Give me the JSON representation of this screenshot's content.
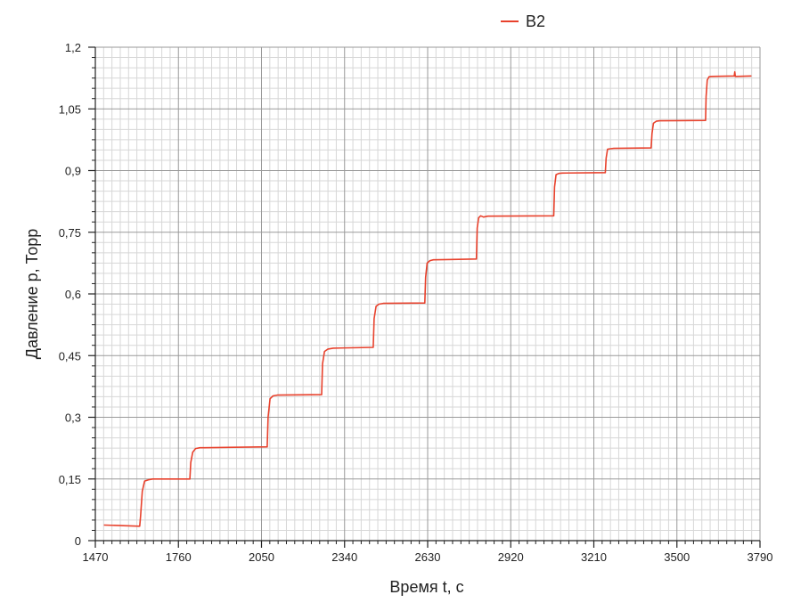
{
  "chart_data": {
    "type": "line",
    "title": "",
    "xlabel": "Время t, c",
    "ylabel": "Давление p, Торр",
    "xlim": [
      1470,
      3790
    ],
    "ylim": [
      0,
      1.2
    ],
    "x_ticks": [
      1470,
      1760,
      2050,
      2340,
      2630,
      2920,
      3210,
      3500,
      3790
    ],
    "y_ticks": [
      0,
      0.15,
      0.3,
      0.45,
      0.6,
      0.75,
      0.9,
      1.05,
      1.2
    ],
    "x_tick_labels": [
      "1470",
      "1760",
      "2050",
      "2340",
      "2630",
      "2920",
      "3210",
      "3500",
      "3790"
    ],
    "y_tick_labels": [
      "0",
      "0,15",
      "0,3",
      "0,45",
      "0,6",
      "0,75",
      "0,9",
      "1,05",
      "1,2"
    ],
    "grid": true,
    "legend_position": "top-center",
    "series": [
      {
        "name": "B2",
        "color": "#e8412c",
        "x": [
          1500,
          1625,
          1628,
          1634,
          1642,
          1655,
          1670,
          1800,
          1803,
          1810,
          1820,
          1835,
          1850,
          2070,
          2073,
          2080,
          2090,
          2105,
          2260,
          2263,
          2270,
          2282,
          2300,
          2440,
          2443,
          2450,
          2460,
          2475,
          2620,
          2623,
          2628,
          2638,
          2650,
          2800,
          2803,
          2808,
          2815,
          2825,
          2840,
          3070,
          3073,
          3078,
          3088,
          3100,
          3250,
          3253,
          3258,
          3268,
          3280,
          3410,
          3413,
          3418,
          3428,
          3440,
          3600,
          3602,
          3606,
          3612,
          3620,
          3700,
          3702,
          3704,
          3760
        ],
        "y": [
          0.038,
          0.035,
          0.06,
          0.12,
          0.145,
          0.148,
          0.15,
          0.15,
          0.19,
          0.215,
          0.224,
          0.226,
          0.226,
          0.228,
          0.3,
          0.345,
          0.352,
          0.354,
          0.355,
          0.43,
          0.46,
          0.466,
          0.468,
          0.47,
          0.54,
          0.57,
          0.575,
          0.577,
          0.578,
          0.64,
          0.675,
          0.681,
          0.683,
          0.685,
          0.76,
          0.785,
          0.79,
          0.787,
          0.789,
          0.79,
          0.86,
          0.89,
          0.893,
          0.894,
          0.895,
          0.93,
          0.952,
          0.953,
          0.954,
          0.955,
          0.99,
          1.015,
          1.02,
          1.021,
          1.022,
          1.08,
          1.12,
          1.128,
          1.129,
          1.13,
          1.14,
          1.129,
          1.13
        ]
      }
    ]
  }
}
